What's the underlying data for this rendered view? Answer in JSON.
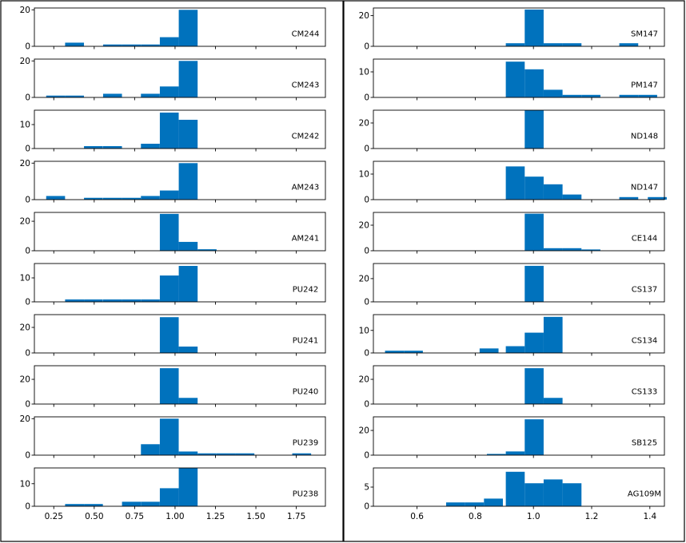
{
  "colors": {
    "bar": "#0072bd",
    "axes": "#000000",
    "frame": "#000000",
    "background": "#ffffff"
  },
  "chart_data": [
    {
      "panel": "left",
      "type": "histogram-grid",
      "xlim": [
        0.13,
        1.93
      ],
      "bin_width": 0.1167,
      "xticks": [
        0.25,
        0.5,
        0.75,
        1.0,
        1.25,
        1.5,
        1.75
      ],
      "xtick_labels": [
        "0.25",
        "0.50",
        "0.75",
        "1.00",
        "1.25",
        "1.50",
        "1.75"
      ],
      "subplots": [
        {
          "label": "CM244",
          "ylim": [
            0,
            21
          ],
          "yticks": [
            0,
            20
          ],
          "ytick_labels": [
            "0",
            "20"
          ],
          "bins": [
            [
              0.32,
              2
            ],
            [
              0.555,
              1
            ],
            [
              0.672,
              1
            ],
            [
              0.789,
              1
            ],
            [
              0.906,
              5
            ],
            [
              1.023,
              20
            ]
          ]
        },
        {
          "label": "CM243",
          "ylim": [
            0,
            21
          ],
          "yticks": [
            0,
            20
          ],
          "ytick_labels": [
            "0",
            "20"
          ],
          "bins": [
            [
              0.203,
              1
            ],
            [
              0.32,
              1
            ],
            [
              0.555,
              2
            ],
            [
              0.789,
              2
            ],
            [
              0.906,
              6
            ],
            [
              1.023,
              20
            ]
          ]
        },
        {
          "label": "CM242",
          "ylim": [
            0,
            16
          ],
          "yticks": [
            0,
            10
          ],
          "ytick_labels": [
            "0",
            "10"
          ],
          "bins": [
            [
              0.437,
              1
            ],
            [
              0.555,
              1
            ],
            [
              0.789,
              2
            ],
            [
              0.906,
              15
            ],
            [
              1.023,
              12
            ]
          ]
        },
        {
          "label": "AM243",
          "ylim": [
            0,
            21
          ],
          "yticks": [
            0,
            20
          ],
          "ytick_labels": [
            "0",
            "20"
          ],
          "bins": [
            [
              0.203,
              2
            ],
            [
              0.437,
              1
            ],
            [
              0.555,
              1
            ],
            [
              0.672,
              1
            ],
            [
              0.789,
              2
            ],
            [
              0.906,
              5
            ],
            [
              1.023,
              20
            ]
          ]
        },
        {
          "label": "AM241",
          "ylim": [
            0,
            26
          ],
          "yticks": [
            0,
            20
          ],
          "ytick_labels": [
            "0",
            "20"
          ],
          "bins": [
            [
              0.906,
              25
            ],
            [
              1.023,
              6
            ],
            [
              1.14,
              1
            ]
          ]
        },
        {
          "label": "PU242",
          "ylim": [
            0,
            16
          ],
          "yticks": [
            0,
            10
          ],
          "ytick_labels": [
            "0",
            "10"
          ],
          "bins": [
            [
              0.32,
              1
            ],
            [
              0.437,
              1
            ],
            [
              0.555,
              1
            ],
            [
              0.672,
              1
            ],
            [
              0.789,
              1
            ],
            [
              0.906,
              11
            ],
            [
              1.023,
              15
            ]
          ]
        },
        {
          "label": "PU241",
          "ylim": [
            0,
            30
          ],
          "yticks": [
            0,
            20
          ],
          "ytick_labels": [
            "0",
            "20"
          ],
          "bins": [
            [
              0.906,
              28
            ],
            [
              1.023,
              5
            ]
          ]
        },
        {
          "label": "PU240",
          "ylim": [
            0,
            31
          ],
          "yticks": [
            0,
            20
          ],
          "ytick_labels": [
            "0",
            "20"
          ],
          "bins": [
            [
              0.906,
              29
            ],
            [
              1.023,
              5
            ]
          ]
        },
        {
          "label": "PU239",
          "ylim": [
            0,
            21
          ],
          "yticks": [
            0,
            20
          ],
          "ytick_labels": [
            "0",
            "20"
          ],
          "bins": [
            [
              0.789,
              6
            ],
            [
              0.906,
              20
            ],
            [
              1.023,
              2
            ],
            [
              1.14,
              1
            ],
            [
              1.257,
              1
            ],
            [
              1.374,
              1
            ],
            [
              1.725,
              1
            ]
          ]
        },
        {
          "label": "PU238",
          "ylim": [
            0,
            17
          ],
          "yticks": [
            0,
            10
          ],
          "ytick_labels": [
            "0",
            "10"
          ],
          "bins": [
            [
              0.32,
              1
            ],
            [
              0.437,
              1
            ],
            [
              0.672,
              2
            ],
            [
              0.789,
              2
            ],
            [
              0.906,
              8
            ],
            [
              1.023,
              17
            ]
          ]
        }
      ]
    },
    {
      "panel": "right",
      "type": "histogram-grid",
      "xlim": [
        0.45,
        1.45
      ],
      "bin_width": 0.065,
      "xticks": [
        0.6,
        0.8,
        1.0,
        1.2,
        1.4
      ],
      "xtick_labels": [
        "0.6",
        "0.8",
        "1.0",
        "1.2",
        "1.4"
      ],
      "subplots": [
        {
          "label": "SM147",
          "ylim": [
            0,
            25
          ],
          "yticks": [
            0,
            20
          ],
          "ytick_labels": [
            "0",
            "20"
          ],
          "bins": [
            [
              0.905,
              2
            ],
            [
              0.97,
              24
            ],
            [
              1.035,
              2
            ],
            [
              1.1,
              2
            ],
            [
              1.295,
              2
            ]
          ]
        },
        {
          "label": "PM147",
          "ylim": [
            0,
            15
          ],
          "yticks": [
            0,
            10
          ],
          "ytick_labels": [
            "0",
            "10"
          ],
          "bins": [
            [
              0.905,
              14
            ],
            [
              0.97,
              11
            ],
            [
              1.035,
              3
            ],
            [
              1.1,
              1
            ],
            [
              1.165,
              1
            ],
            [
              1.295,
              1
            ],
            [
              1.36,
              1
            ]
          ]
        },
        {
          "label": "ND148",
          "ylim": [
            0,
            30
          ],
          "yticks": [
            0,
            20
          ],
          "ytick_labels": [
            "0",
            "20"
          ],
          "bins": [
            [
              0.97,
              30
            ]
          ]
        },
        {
          "label": "ND147",
          "ylim": [
            0,
            15
          ],
          "yticks": [
            0,
            10
          ],
          "ytick_labels": [
            "0",
            "10"
          ],
          "bins": [
            [
              0.905,
              13
            ],
            [
              0.97,
              9
            ],
            [
              1.035,
              6
            ],
            [
              1.1,
              2
            ],
            [
              1.295,
              1
            ],
            [
              1.393,
              1
            ]
          ]
        },
        {
          "label": "CE144",
          "ylim": [
            0,
            30
          ],
          "yticks": [
            0,
            20
          ],
          "ytick_labels": [
            "0",
            "20"
          ],
          "bins": [
            [
              0.97,
              29
            ],
            [
              1.035,
              2
            ],
            [
              1.1,
              2
            ],
            [
              1.165,
              1
            ]
          ]
        },
        {
          "label": "CS137",
          "ylim": [
            0,
            33
          ],
          "yticks": [
            0,
            20
          ],
          "ytick_labels": [
            "0",
            "20"
          ],
          "bins": [
            [
              0.97,
              31
            ]
          ]
        },
        {
          "label": "CS134",
          "ylim": [
            0,
            17
          ],
          "yticks": [
            0,
            10
          ],
          "ytick_labels": [
            "0",
            "10"
          ],
          "bins": [
            [
              0.49,
              1
            ],
            [
              0.555,
              1
            ],
            [
              0.815,
              2
            ],
            [
              0.905,
              3
            ],
            [
              0.97,
              9
            ],
            [
              1.035,
              16
            ]
          ]
        },
        {
          "label": "CS133",
          "ylim": [
            0,
            31
          ],
          "yticks": [
            0,
            20
          ],
          "ytick_labels": [
            "0",
            "20"
          ],
          "bins": [
            [
              0.97,
              29
            ],
            [
              1.035,
              5
            ]
          ]
        },
        {
          "label": "SB125",
          "ylim": [
            0,
            31
          ],
          "yticks": [
            0,
            20
          ],
          "ytick_labels": [
            "0",
            "20"
          ],
          "bins": [
            [
              0.84,
              1
            ],
            [
              0.905,
              3
            ],
            [
              0.97,
              29
            ]
          ]
        },
        {
          "label": "AG109M",
          "ylim": [
            0,
            10
          ],
          "yticks": [
            0,
            5
          ],
          "ytick_labels": [
            "0",
            "5"
          ],
          "bins": [
            [
              0.7,
              1
            ],
            [
              0.765,
              1
            ],
            [
              0.83,
              2
            ],
            [
              0.905,
              9
            ],
            [
              0.97,
              6
            ],
            [
              1.035,
              7
            ],
            [
              1.1,
              6
            ]
          ]
        }
      ]
    }
  ]
}
